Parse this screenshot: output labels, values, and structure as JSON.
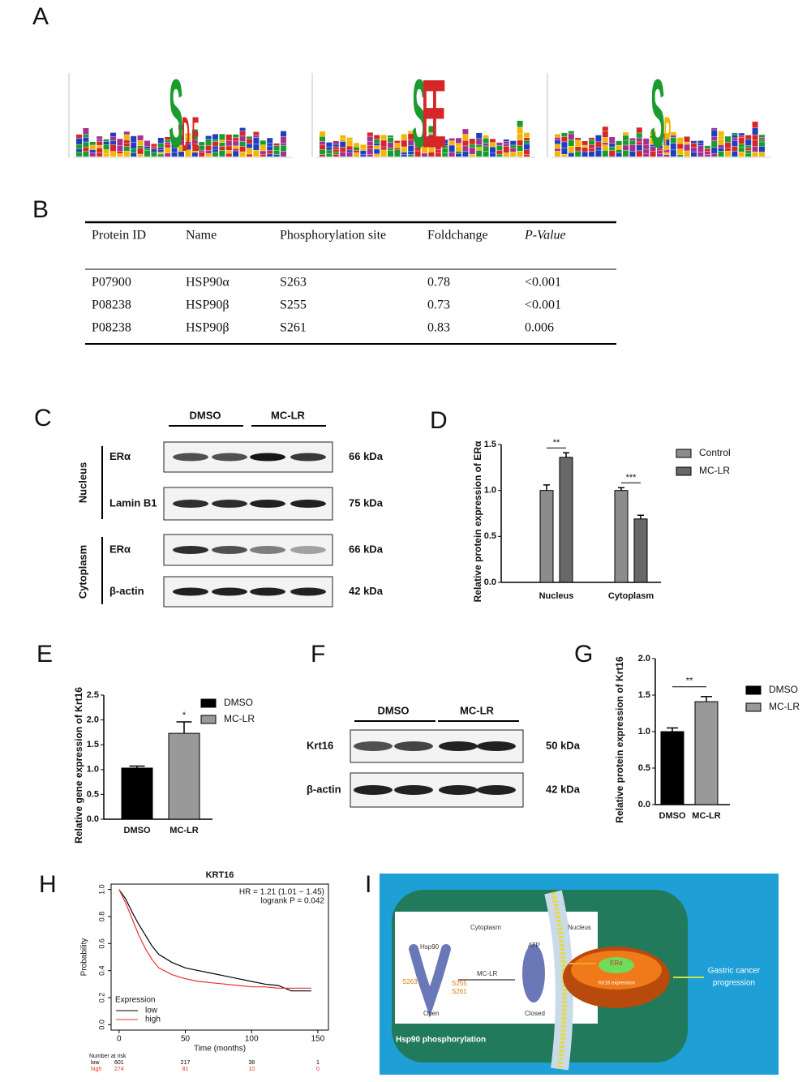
{
  "panel_labels": [
    "A",
    "B",
    "C",
    "D",
    "E",
    "F",
    "G",
    "H",
    "I"
  ],
  "logos": [
    {
      "letters": [
        "S",
        "D",
        "E"
      ]
    },
    {
      "letters": [
        "S",
        "E",
        "E"
      ]
    },
    {
      "letters": [
        "S",
        "P"
      ]
    }
  ],
  "table": {
    "header": [
      "Protein ID",
      "Name",
      "Phosphorylation site",
      "Foldchange",
      "P-Value"
    ],
    "rows": [
      [
        "P07900",
        "HSP90α",
        "S263",
        "0.78",
        "<0.001"
      ],
      [
        "P08238",
        "HSP90β",
        "S255",
        "0.73",
        "<0.001"
      ],
      [
        "P08238",
        "HSP90β",
        "S261",
        "0.83",
        "0.006"
      ]
    ]
  },
  "blots_c": {
    "conditions": [
      "DMSO",
      "MC-LR"
    ],
    "compartments": [
      "Nucleus",
      "Cytoplasm"
    ],
    "rows": [
      {
        "label": "ERα",
        "size": "66 kDa"
      },
      {
        "label": "Lamin B1",
        "size": "75 kDa"
      },
      {
        "label": "ERα",
        "size": "66 kDa"
      },
      {
        "label": "β-actin",
        "size": "42 kDa"
      }
    ]
  },
  "blots_f": {
    "conditions": [
      "DMSO",
      "MC-LR"
    ],
    "rows": [
      {
        "label": "Krt16",
        "size": "50 kDa"
      },
      {
        "label": "β-actin",
        "size": "42 kDa"
      }
    ]
  },
  "diagram": {
    "cytoplasm": "Cytoplasm",
    "nucleus": "Nucleus",
    "hsp90": "Hsp90",
    "treatment": "MC-LR",
    "sites": [
      "S263",
      "S255",
      "S261"
    ],
    "open": "Open",
    "closed": "Closed",
    "atp": "ATP",
    "era": "ERα",
    "expression": "Krt16 expression",
    "phospho": "Hsp90 phosphorylation",
    "outcome": [
      "Gastric cancer",
      "progression"
    ]
  },
  "chart_data": [
    {
      "type": "bar",
      "y_label": "Relative protein expression of ERα",
      "categories": [
        "Nucleus",
        "Cytoplasm"
      ],
      "series": [
        {
          "name": "Control",
          "color": "#8c8c8c",
          "values": [
            1.0,
            1.0
          ],
          "errors": [
            0.06,
            0.03
          ]
        },
        {
          "name": "MC-LR",
          "color": "#686868",
          "values": [
            1.36,
            0.69
          ],
          "errors": [
            0.05,
            0.04
          ]
        }
      ],
      "significance": [
        "**",
        "***"
      ],
      "ylim": [
        0,
        1.5
      ],
      "yticks": [
        {
          "value": 0,
          "label": "0.0"
        },
        0.5,
        {
          "value": 1,
          "label": "1.0"
        },
        1.5
      ]
    },
    {
      "type": "bar",
      "y_label": "Relative gene expression of Krt16",
      "categories": [
        "DMSO",
        "MC-LR"
      ],
      "values": [
        1.03,
        1.73
      ],
      "errors": [
        0.04,
        0.23
      ],
      "colors": [
        "#000000",
        "#999999"
      ],
      "significance": [
        "*"
      ],
      "ylim": [
        0,
        2.5
      ],
      "yticks": [
        {
          "value": 0,
          "label": "0.0"
        },
        0.5,
        {
          "value": 1,
          "label": "1.0"
        },
        1.5,
        {
          "value": 2,
          "label": "2.0"
        },
        2.5
      ]
    },
    {
      "type": "bar",
      "y_label": "Relative protein expression of Krt16",
      "categories": [
        "DMSO",
        "MC-LR"
      ],
      "values": [
        1.0,
        1.41
      ],
      "errors": [
        0.05,
        0.07
      ],
      "colors": [
        "#000000",
        "#999999"
      ],
      "significance": [
        "**"
      ],
      "ylim": [
        0,
        2.0
      ],
      "yticks": [
        {
          "value": 0,
          "label": "0.0"
        },
        0.5,
        {
          "value": 1,
          "label": "1.0"
        },
        1.5,
        {
          "value": 2,
          "label": "2.0"
        }
      ]
    },
    {
      "type": "line",
      "title": "KRT16",
      "annotations": [
        "HR = 1.21 (1.01 − 1.45)",
        "logrank P = 0.042"
      ],
      "x_label": "Time (months)",
      "y_label": "Probability",
      "legend_title": "Expression",
      "x": [
        0,
        5,
        10,
        15,
        20,
        25,
        30,
        40,
        50,
        60,
        70,
        80,
        90,
        100,
        110,
        120,
        130,
        145
      ],
      "series": [
        {
          "name": "low",
          "color": "#000000",
          "values": [
            1.0,
            0.93,
            0.83,
            0.74,
            0.66,
            0.58,
            0.52,
            0.46,
            0.42,
            0.4,
            0.38,
            0.36,
            0.34,
            0.32,
            0.3,
            0.29,
            0.25,
            0.25
          ]
        },
        {
          "name": "high",
          "color": "#e8312f",
          "values": [
            1.0,
            0.9,
            0.78,
            0.66,
            0.56,
            0.48,
            0.42,
            0.37,
            0.34,
            0.32,
            0.31,
            0.3,
            0.29,
            0.28,
            0.28,
            0.27,
            0.27,
            0.27
          ]
        }
      ],
      "xlim": [
        -6,
        158
      ],
      "xticks": [
        0,
        50,
        100,
        150
      ],
      "ylim": [
        -0.04,
        1.04
      ],
      "yticks": [
        {
          "value": 0,
          "label": "0.0"
        },
        0.2,
        0.4,
        0.6,
        0.8,
        {
          "value": 1,
          "label": "1.0"
        }
      ],
      "risk_table": {
        "title": "Number at risk",
        "rows": [
          {
            "name": "low",
            "values": [
              601,
              217,
              38,
              1
            ]
          },
          {
            "name": "high",
            "values": [
              274,
              81,
              10,
              0
            ]
          }
        ]
      }
    }
  ]
}
